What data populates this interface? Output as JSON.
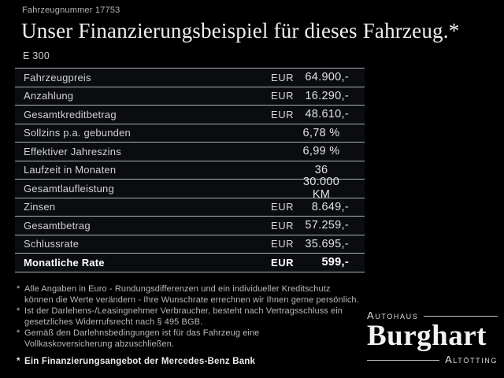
{
  "header": {
    "vehicle_number": "Fahrzeugnummer 17753",
    "title": "Unser Finanzierungsbeispiel für dieses Fahrzeug.*",
    "model": "E 300"
  },
  "table": {
    "rows": [
      {
        "label": "Fahrzeugpreis",
        "currency": "EUR",
        "value": "64.900,-",
        "bold": false
      },
      {
        "label": "Anzahlung",
        "currency": "EUR",
        "value": "16.290,-",
        "bold": false
      },
      {
        "label": "Gesamtkreditbetrag",
        "currency": "EUR",
        "value": "48.610,-",
        "bold": false
      },
      {
        "label": "Sollzins p.a. gebunden",
        "currency": "",
        "value": "6,78 %",
        "bold": false
      },
      {
        "label": "Effektiver Jahreszins",
        "currency": "",
        "value": "6,99 %",
        "bold": false
      },
      {
        "label": "Laufzeit in Monaten",
        "currency": "",
        "value": "36",
        "bold": false
      },
      {
        "label": "Gesamtlaufleistung",
        "currency": "",
        "value": "30.000 KM",
        "bold": false
      },
      {
        "label": "Zinsen",
        "currency": "EUR",
        "value": "8.649,-",
        "bold": false
      },
      {
        "label": "Gesamtbetrag",
        "currency": "EUR",
        "value": "57.259,-",
        "bold": false
      },
      {
        "label": "Schlussrate",
        "currency": "EUR",
        "value": "35.695,-",
        "bold": false
      },
      {
        "label": "Monatliche Rate",
        "currency": "EUR",
        "value": "599,-",
        "bold": true
      }
    ]
  },
  "footnotes": {
    "marker": "*",
    "items": [
      "Alle Angaben in Euro - Rundungsdifferenzen und ein individueller Kreditschutz\nkönnen die Werte verändern - Ihre Wunschrate errechnen wir Ihnen gerne persönlich.",
      "Ist der Darlehens-/Leasingnehmer Verbraucher, besteht nach Vertragsschluss ein\ngesetzliches Widerrufsrecht nach § 495 BGB.",
      "Gemäß den Darlehnsbedingungen ist für das Fahrzeug eine\nVollkaskoversicherung abzuschließen."
    ],
    "financing_note": "Ein Finanzierungsangebot der Mercedes-Benz Bank"
  },
  "logo": {
    "top": "Autohaus",
    "name": "Burghart",
    "bottom": "Altötting"
  },
  "colors": {
    "background": "#000000",
    "row_background": "#0a0c10",
    "divider": "#a9b1b6",
    "text_primary": "#e9e9e9",
    "text_secondary": "#b6b6b6",
    "text_value": "#e2e2e2"
  }
}
